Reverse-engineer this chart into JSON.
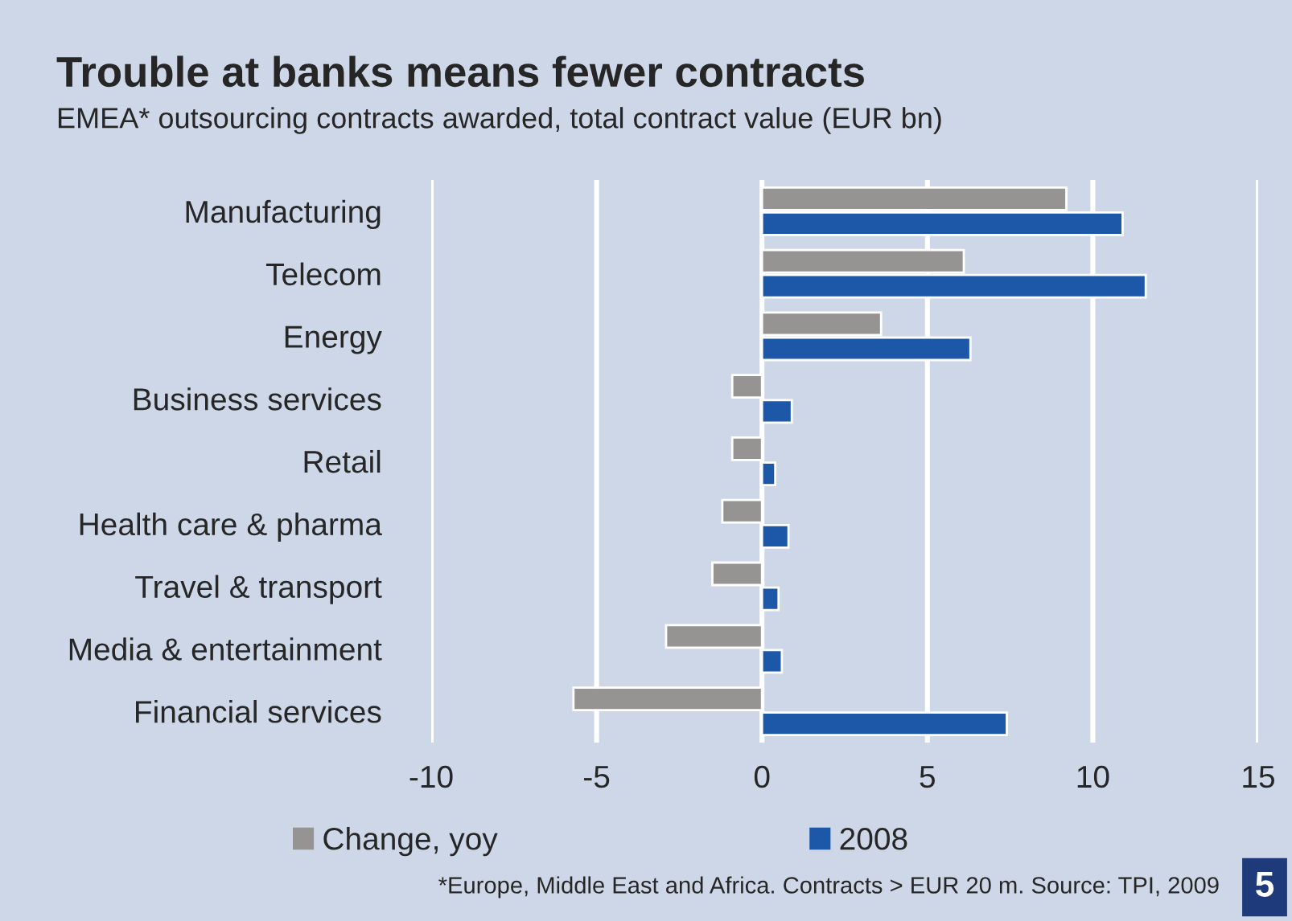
{
  "chart_data": {
    "type": "bar",
    "orientation": "horizontal",
    "title": "Trouble at banks means fewer contracts",
    "subtitle": "EMEA* outsourcing contracts awarded, total contract value (EUR bn)",
    "categories": [
      "Manufacturing",
      "Telecom",
      "Energy",
      "Business services",
      "Retail",
      "Health care & pharma",
      "Travel & transport",
      "Media & entertainment",
      "Financial services"
    ],
    "series": [
      {
        "name": "Change, yoy",
        "color": "#969492",
        "values": [
          9.2,
          6.1,
          3.6,
          -0.9,
          -0.9,
          -1.2,
          -1.5,
          -2.9,
          -5.7
        ]
      },
      {
        "name": "2008",
        "color": "#1c57a8",
        "values": [
          10.9,
          11.6,
          6.3,
          0.9,
          0.4,
          0.8,
          0.5,
          0.6,
          7.4
        ]
      }
    ],
    "xlim": [
      -10,
      15
    ],
    "xticks": [
      -10,
      -5,
      0,
      5,
      10,
      15
    ],
    "grid": "x",
    "legend": "bottom",
    "annotations": [
      "*Europe, Middle East and Africa. Contracts > EUR 20 m. Source: TPI, 2009",
      "5"
    ]
  }
}
